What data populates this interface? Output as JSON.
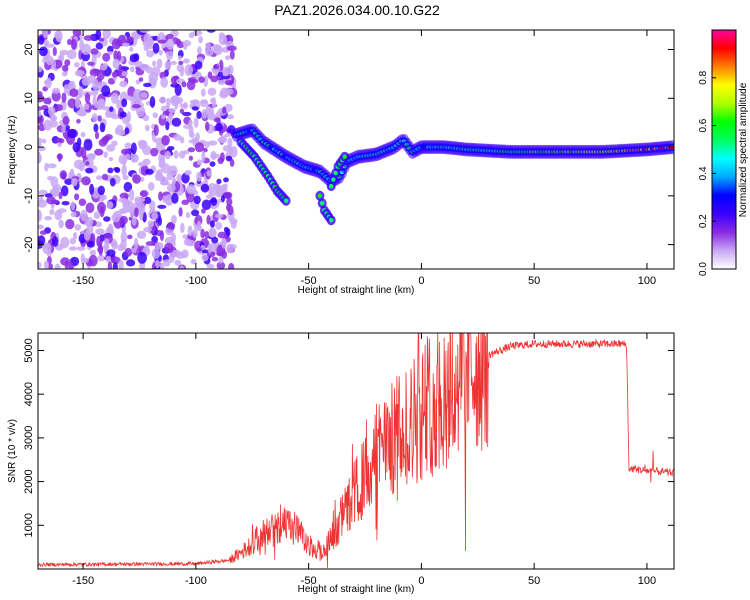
{
  "title": "PAZ1.2026.034.00.10.G22",
  "chart_data": [
    {
      "type": "heatmap",
      "description": "Spectrogram",
      "xlabel": "Height of straight line (km)",
      "ylabel": "Frequency (Hz)",
      "xlim": [
        -170,
        112
      ],
      "ylim": [
        -25,
        24
      ],
      "xticks": [
        -150,
        -100,
        -50,
        0,
        50,
        100
      ],
      "yticks": [
        -20,
        -10,
        0,
        10,
        20
      ],
      "colorbar": {
        "label": "Normalized spectral amplitude",
        "range": [
          0,
          1
        ],
        "ticks": [
          0.0,
          0.2,
          0.4,
          0.6,
          0.8
        ],
        "tick_labels": [
          "0.0",
          "0.2",
          "0.4",
          "0.6",
          "0.8"
        ],
        "colors": [
          "#ffffff",
          "#c9a8f5",
          "#8a2be2",
          "#3a00ff",
          "#0000ff",
          "#00a8ff",
          "#00ffff",
          "#00ff60",
          "#00ff00",
          "#b0ff00",
          "#ffff00",
          "#ff8000",
          "#ff0000",
          "#ff00a0"
        ]
      },
      "noise_region_x": [
        -170,
        -83
      ],
      "ridge": [
        [
          -82,
          2.5
        ],
        [
          -75,
          3.5
        ],
        [
          -70,
          1
        ],
        [
          -60,
          -2
        ],
        [
          -52,
          -4
        ],
        [
          -45,
          -5
        ],
        [
          -40,
          -7
        ],
        [
          -36,
          -6
        ],
        [
          -33,
          -3
        ],
        [
          -28,
          -2
        ],
        [
          -20,
          -1.5
        ],
        [
          -12,
          0
        ],
        [
          -8,
          1.5
        ],
        [
          -4,
          -1
        ],
        [
          0,
          0
        ],
        [
          10,
          0
        ],
        [
          20,
          -0.5
        ],
        [
          40,
          -1
        ],
        [
          60,
          -1
        ],
        [
          80,
          -1
        ],
        [
          100,
          -0.5
        ],
        [
          112,
          0
        ]
      ],
      "secondary_ridges": [
        [
          [
            -80,
            1
          ],
          [
            -74,
            -2
          ],
          [
            -68,
            -6
          ],
          [
            -64,
            -9
          ],
          [
            -60,
            -11
          ]
        ],
        [
          [
            -45,
            -10
          ],
          [
            -43,
            -13
          ],
          [
            -40,
            -15
          ]
        ],
        [
          [
            -40,
            -8
          ],
          [
            -37,
            -4
          ],
          [
            -34,
            -2
          ]
        ]
      ]
    },
    {
      "type": "line",
      "xlabel": "Height of straight line (km)",
      "ylabel": "SNR (10 * v/v)",
      "xlim": [
        -170,
        112
      ],
      "ylim": [
        0,
        5400
      ],
      "xticks": [
        -150,
        -100,
        -50,
        0,
        50,
        100
      ],
      "yticks": [
        1000,
        2000,
        3000,
        4000,
        5000
      ],
      "color": "#ee3333",
      "envelope": [
        [
          -170,
          100
        ],
        [
          -100,
          120
        ],
        [
          -85,
          200
        ],
        [
          -78,
          450
        ],
        [
          -70,
          800
        ],
        [
          -62,
          1000
        ],
        [
          -55,
          900
        ],
        [
          -50,
          500
        ],
        [
          -45,
          350
        ],
        [
          -40,
          700
        ],
        [
          -35,
          1200
        ],
        [
          -30,
          1700
        ],
        [
          -25,
          2100
        ],
        [
          -20,
          2600
        ],
        [
          -15,
          2900
        ],
        [
          -10,
          3100
        ],
        [
          -5,
          3300
        ],
        [
          0,
          3650
        ],
        [
          10,
          4000
        ],
        [
          20,
          4500
        ],
        [
          30,
          4900
        ],
        [
          40,
          5100
        ],
        [
          50,
          5150
        ],
        [
          60,
          5150
        ],
        [
          70,
          5150
        ],
        [
          80,
          5150
        ],
        [
          90,
          5150
        ],
        [
          91,
          5100
        ],
        [
          92,
          2300
        ],
        [
          100,
          2250
        ],
        [
          112,
          2200
        ]
      ]
    }
  ]
}
